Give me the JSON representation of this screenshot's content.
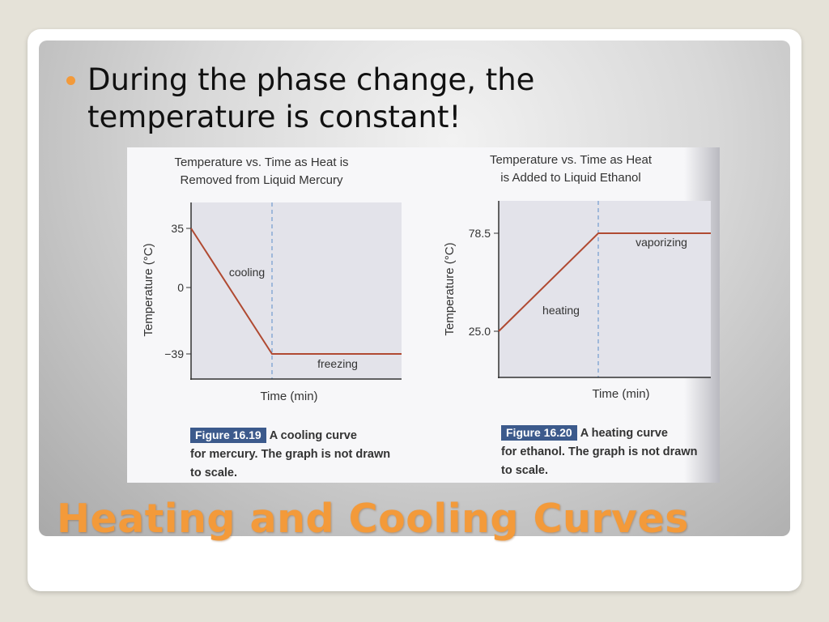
{
  "slide": {
    "bullet": "During the phase change, the temperature is constant!",
    "title": "Heating and Cooling Curves",
    "accent_color": "#f39a3a"
  },
  "chart_data": [
    {
      "type": "line",
      "title": "Temperature vs. Time as Heat is Removed from Liquid Mercury",
      "title_lines": [
        "Temperature vs. Time as Heat is",
        "Removed from Liquid Mercury"
      ],
      "xlabel": "Time (min)",
      "ylabel": "Temperature (°C)",
      "y_ticks": [
        "35",
        "0",
        "−39"
      ],
      "annotations": [
        "cooling",
        "freezing"
      ],
      "series": [
        {
          "values": [
            35,
            -39,
            -39
          ]
        }
      ],
      "caption": {
        "figure": "Figure 16.19",
        "text_lines": [
          "A cooling curve",
          "for mercury. The graph is not drawn",
          "to scale."
        ]
      }
    },
    {
      "type": "line",
      "title": "Temperature vs. Time as Heat is Added to Liquid Ethanol",
      "title_lines": [
        "Temperature vs. Time as Heat",
        "is Added to Liquid Ethanol"
      ],
      "xlabel": "Time (min)",
      "ylabel": "Temperature (°C)",
      "y_ticks": [
        "78.5",
        "25.0"
      ],
      "annotations": [
        "heating",
        "vaporizing"
      ],
      "series": [
        {
          "values": [
            25.0,
            78.5,
            78.5
          ]
        }
      ],
      "caption": {
        "figure": "Figure 16.20",
        "text_lines": [
          "A heating curve",
          "for ethanol. The graph is not drawn",
          "to scale."
        ]
      }
    }
  ]
}
